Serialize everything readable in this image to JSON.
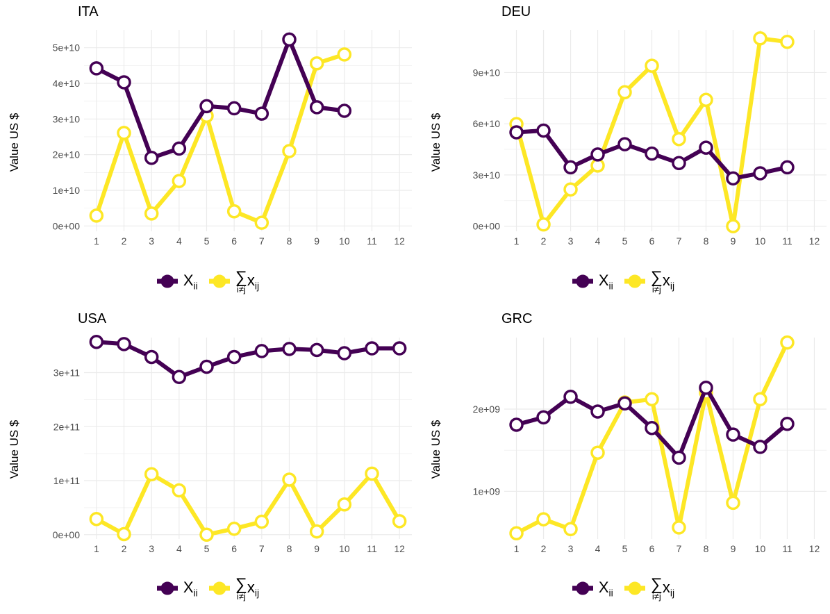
{
  "legend": {
    "xii_base": "X",
    "xii_sub": "ii",
    "sum_symbol": "∑",
    "sum_under": "i≠j",
    "sum_base": "x",
    "sum_sub": "ij"
  },
  "colors": {
    "xii": "#440154",
    "sum": "#FDE725",
    "grid": "#EBEBEB",
    "marker_fill": "#FFFFFF"
  },
  "panels": [
    {
      "title": "ITA",
      "ylabel": "Value US $"
    },
    {
      "title": "DEU",
      "ylabel": "Value US $"
    },
    {
      "title": "USA",
      "ylabel": "Value US $"
    },
    {
      "title": "GRC",
      "ylabel": "Value US $"
    }
  ],
  "chart_data": [
    {
      "type": "line",
      "title": "ITA",
      "xlabel": "",
      "ylabel": "Value US $",
      "x_ticks": [
        "1",
        "2",
        "3",
        "4",
        "5",
        "6",
        "7",
        "8",
        "9",
        "10",
        "11",
        "12"
      ],
      "xlim": [
        0.55,
        12.45
      ],
      "y_ticks": [
        0,
        10000000000,
        20000000000,
        30000000000,
        40000000000,
        50000000000
      ],
      "y_tick_labels": [
        "0e+00",
        "1e+10",
        "2e+10",
        "3e+10",
        "4e+10",
        "5e+10"
      ],
      "ylim": [
        -1500000000,
        55000000000
      ],
      "grid": true,
      "legend": "bottom",
      "series": [
        {
          "key": "xii",
          "x": [
            1,
            2,
            3,
            4,
            5,
            6,
            7,
            8,
            9,
            10
          ],
          "values": [
            44200000000,
            40300000000,
            19100000000,
            21700000000,
            33600000000,
            33000000000,
            31500000000,
            52300000000,
            33300000000,
            32300000000
          ]
        },
        {
          "key": "sum",
          "x": [
            1,
            2,
            3,
            4,
            5,
            6,
            7,
            8,
            9,
            10
          ],
          "values": [
            2900000000,
            26100000000,
            3500000000,
            12600000000,
            30900000000,
            4100000000,
            900000000,
            21000000000,
            45600000000,
            48100000000
          ]
        }
      ]
    },
    {
      "type": "line",
      "title": "DEU",
      "xlabel": "",
      "ylabel": "Value US $",
      "x_ticks": [
        "1",
        "2",
        "3",
        "4",
        "5",
        "6",
        "7",
        "8",
        "9",
        "10",
        "11",
        "12"
      ],
      "xlim": [
        0.55,
        12.45
      ],
      "y_ticks": [
        0,
        30000000000,
        60000000000,
        90000000000
      ],
      "y_tick_labels": [
        "0e+00",
        "3e+10",
        "6e+10",
        "9e+10"
      ],
      "ylim": [
        -3000000000,
        115000000000
      ],
      "grid": true,
      "legend": "bottom",
      "series": [
        {
          "key": "xii",
          "x": [
            1,
            2,
            3,
            4,
            5,
            6,
            7,
            8,
            9,
            10,
            11
          ],
          "values": [
            55000000000,
            56000000000,
            34500000000,
            42000000000,
            48000000000,
            42500000000,
            37000000000,
            46000000000,
            28000000000,
            31000000000,
            34500000000
          ]
        },
        {
          "key": "sum",
          "x": [
            1,
            2,
            3,
            4,
            5,
            6,
            7,
            8,
            9,
            10,
            11
          ],
          "values": [
            59800000000,
            1000000000,
            21500000000,
            35500000000,
            78500000000,
            94000000000,
            51000000000,
            74000000000,
            0,
            110000000000,
            108000000000
          ]
        }
      ]
    },
    {
      "type": "line",
      "title": "USA",
      "xlabel": "",
      "ylabel": "Value US $",
      "x_ticks": [
        "1",
        "2",
        "3",
        "4",
        "5",
        "6",
        "7",
        "8",
        "9",
        "10",
        "11",
        "12"
      ],
      "xlim": [
        0.55,
        12.45
      ],
      "y_ticks": [
        0,
        100000000000,
        200000000000,
        300000000000
      ],
      "y_tick_labels": [
        "0e+00",
        "1e+11",
        "2e+11",
        "3e+11"
      ],
      "ylim": [
        -8000000000,
        365000000000
      ],
      "grid": true,
      "legend": "bottom",
      "series": [
        {
          "key": "xii",
          "x": [
            1,
            2,
            3,
            4,
            5,
            6,
            7,
            8,
            9,
            10,
            11,
            12
          ],
          "values": [
            357000000000,
            353000000000,
            329000000000,
            292000000000,
            311000000000,
            329000000000,
            340000000000,
            344000000000,
            342000000000,
            336000000000,
            345000000000,
            345000000000
          ]
        },
        {
          "key": "sum",
          "x": [
            1,
            2,
            3,
            4,
            5,
            6,
            7,
            8,
            9,
            10,
            11,
            12
          ],
          "values": [
            29000000000,
            1000000000,
            112000000000,
            82000000000,
            0,
            11000000000,
            24000000000,
            102000000000,
            6000000000,
            56000000000,
            113000000000,
            25000000000
          ]
        }
      ]
    },
    {
      "type": "line",
      "title": "GRC",
      "xlabel": "",
      "ylabel": "Value US $",
      "x_ticks": [
        "1",
        "2",
        "3",
        "4",
        "5",
        "6",
        "7",
        "8",
        "9",
        "10",
        "11",
        "12"
      ],
      "xlim": [
        0.55,
        12.45
      ],
      "y_ticks": [
        1000000000,
        2000000000
      ],
      "y_tick_labels": [
        "1e+09",
        "2e+09"
      ],
      "ylim": [
        420000000,
        2870000000
      ],
      "grid": true,
      "legend": "bottom",
      "series": [
        {
          "key": "xii",
          "x": [
            1,
            2,
            3,
            4,
            5,
            6,
            7,
            8,
            9,
            10,
            11
          ],
          "values": [
            1810000000,
            1900000000,
            2150000000,
            1970000000,
            2070000000,
            1770000000,
            1410000000,
            2260000000,
            1690000000,
            1540000000,
            1820000000
          ]
        },
        {
          "key": "sum",
          "x": [
            1,
            2,
            3,
            4,
            5,
            6,
            7,
            8,
            9,
            10,
            11
          ],
          "values": [
            490000000,
            660000000,
            540000000,
            1470000000,
            2080000000,
            2120000000,
            560000000,
            2200000000,
            860000000,
            2120000000,
            2810000000
          ]
        }
      ]
    }
  ]
}
